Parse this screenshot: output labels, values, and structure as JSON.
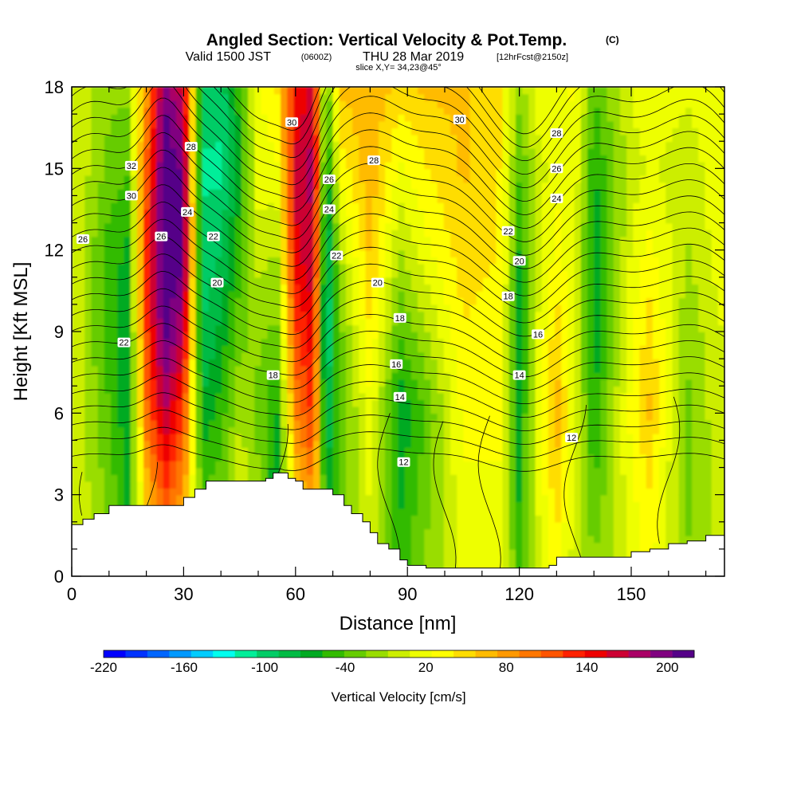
{
  "header": {
    "title": "Angled Section: Vertical Velocity & Pot.Temp.",
    "title_mark": "(C)",
    "valid_a": "Valid 1500 JST",
    "valid_utc": "(0600Z)",
    "valid_b": "THU 28 Mar 2019",
    "forecast": "[12hrFcst@2150z]",
    "slice": "slice X,Y= 34,23@45°"
  },
  "chart_data": {
    "type": "heatmap",
    "xlabel": "Distance [nm]",
    "ylabel": "Height [Kft MSL]",
    "xlim": [
      0,
      175
    ],
    "ylim": [
      0,
      18
    ],
    "x_ticks": [
      0,
      30,
      60,
      90,
      120,
      150
    ],
    "y_ticks": [
      0,
      3,
      6,
      9,
      12,
      15,
      18
    ],
    "colorbar": {
      "label": "Vertical Velocity [cm/s]",
      "range": [
        -220,
        220
      ],
      "tick_values": [
        -220,
        -160,
        -100,
        -40,
        20,
        80,
        140,
        200
      ],
      "tick_labels": [
        "-220",
        "-160",
        "-100",
        "-40",
        "20",
        "80",
        "140",
        "200"
      ],
      "colors": [
        "#0000ff",
        "#0033ff",
        "#0066ff",
        "#0099ff",
        "#00ccff",
        "#00ffee",
        "#00ee99",
        "#00cc66",
        "#00bb44",
        "#00aa22",
        "#33bb00",
        "#66cc00",
        "#99dd00",
        "#ccee00",
        "#eeff00",
        "#ffff00",
        "#ffdd00",
        "#ffbb00",
        "#ff9900",
        "#ff7700",
        "#ff5500",
        "#ff2200",
        "#ee0000",
        "#cc0033",
        "#aa0066",
        "#800080",
        "#550088"
      ]
    },
    "vv_grid": {
      "x": [
        0,
        10,
        15,
        20,
        25,
        30,
        35,
        40,
        45,
        50,
        55,
        60,
        65,
        68,
        72,
        80,
        88,
        95,
        105,
        115,
        120,
        125,
        130,
        135,
        140,
        150,
        155,
        165,
        175
      ],
      "columns": [
        [
          10,
          10,
          10,
          10,
          10,
          10,
          10
        ],
        [
          -20,
          -30,
          -40,
          -50,
          -50,
          -30,
          -20
        ],
        [
          -50,
          -60,
          -70,
          -70,
          -60,
          -40,
          -20
        ],
        [
          40,
          60,
          100,
          120,
          130,
          110,
          80
        ],
        [
          80,
          120,
          170,
          210,
          230,
          220,
          200
        ],
        [
          40,
          80,
          120,
          170,
          210,
          200,
          160
        ],
        [
          -20,
          -40,
          -70,
          -90,
          -100,
          -110,
          -90
        ],
        [
          -10,
          -30,
          -50,
          -70,
          -90,
          -110,
          -100
        ],
        [
          20,
          10,
          -10,
          -30,
          -50,
          -60,
          -50
        ],
        [
          -10,
          -20,
          -30,
          -20,
          0,
          20,
          20
        ],
        [
          -60,
          -80,
          -60,
          -30,
          -10,
          20,
          40
        ],
        [
          30,
          50,
          90,
          120,
          150,
          160,
          140
        ],
        [
          60,
          90,
          130,
          150,
          170,
          180,
          160
        ],
        [
          -50,
          -70,
          -100,
          -120,
          -110,
          -80,
          -50
        ],
        [
          -20,
          -30,
          -40,
          -30,
          -10,
          30,
          60
        ],
        [
          0,
          10,
          20,
          40,
          60,
          70,
          70
        ],
        [
          -50,
          -60,
          -70,
          -40,
          -10,
          20,
          50
        ],
        [
          -20,
          -30,
          -40,
          -10,
          20,
          40,
          60
        ],
        [
          10,
          20,
          30,
          40,
          50,
          60,
          60
        ],
        [
          10,
          20,
          30,
          30,
          40,
          40,
          40
        ],
        [
          -40,
          -60,
          -70,
          -70,
          -60,
          -40,
          -20
        ],
        [
          0,
          10,
          20,
          10,
          0,
          0,
          20
        ],
        [
          30,
          50,
          70,
          50,
          30,
          20,
          10
        ],
        [
          0,
          0,
          10,
          10,
          10,
          20,
          30
        ],
        [
          -20,
          -40,
          -60,
          -70,
          -70,
          -60,
          -40
        ],
        [
          10,
          20,
          30,
          20,
          10,
          0,
          10
        ],
        [
          30,
          40,
          60,
          50,
          30,
          10,
          20
        ],
        [
          -20,
          -30,
          -30,
          -20,
          -10,
          0,
          10
        ],
        [
          0,
          0,
          10,
          10,
          20,
          20,
          20
        ]
      ],
      "y": [
        0,
        3,
        6,
        9,
        12,
        15,
        18
      ]
    },
    "terrain": {
      "x": [
        0,
        3,
        6,
        10,
        15,
        20,
        25,
        30,
        33,
        36,
        40,
        45,
        50,
        52,
        54,
        56,
        58,
        60,
        62,
        65,
        68,
        70,
        73,
        75,
        78,
        80,
        82,
        85,
        88,
        90,
        95,
        100,
        105,
        110,
        115,
        120,
        125,
        128,
        130,
        133,
        136,
        140,
        145,
        150,
        155,
        160,
        165,
        170,
        175
      ],
      "height": [
        1.9,
        2.1,
        2.3,
        2.6,
        2.6,
        2.6,
        2.6,
        2.9,
        3.2,
        3.5,
        3.5,
        3.5,
        3.5,
        3.6,
        3.8,
        3.8,
        3.6,
        3.5,
        3.2,
        3.2,
        3.2,
        3.0,
        2.6,
        2.3,
        2.0,
        1.6,
        1.2,
        1.0,
        0.6,
        0.4,
        0.3,
        0.3,
        0.3,
        0.3,
        0.3,
        0.3,
        0.3,
        0.4,
        0.7,
        0.7,
        0.7,
        0.7,
        0.7,
        0.9,
        1.0,
        1.2,
        1.3,
        1.5,
        1.6
      ]
    },
    "theta_levels": [
      12,
      14,
      16,
      18,
      20,
      22,
      24,
      26,
      28,
      30,
      32
    ],
    "theta_labels": [
      {
        "text": "32",
        "x": 16,
        "y": 15.1
      },
      {
        "text": "30",
        "x": 16,
        "y": 14.0
      },
      {
        "text": "26",
        "x": 3,
        "y": 12.4
      },
      {
        "text": "22",
        "x": 14,
        "y": 8.6
      },
      {
        "text": "28",
        "x": 32,
        "y": 15.8
      },
      {
        "text": "24",
        "x": 31,
        "y": 13.4
      },
      {
        "text": "26",
        "x": 24,
        "y": 12.5
      },
      {
        "text": "22",
        "x": 38,
        "y": 12.5
      },
      {
        "text": "20",
        "x": 39,
        "y": 10.8
      },
      {
        "text": "30",
        "x": 59,
        "y": 16.7
      },
      {
        "text": "26",
        "x": 69,
        "y": 14.6
      },
      {
        "text": "24",
        "x": 69,
        "y": 13.5
      },
      {
        "text": "22",
        "x": 71,
        "y": 11.8
      },
      {
        "text": "18",
        "x": 54,
        "y": 7.4
      },
      {
        "text": "28",
        "x": 81,
        "y": 15.3
      },
      {
        "text": "20",
        "x": 82,
        "y": 10.8
      },
      {
        "text": "18",
        "x": 88,
        "y": 9.5
      },
      {
        "text": "16",
        "x": 87,
        "y": 7.8
      },
      {
        "text": "14",
        "x": 88,
        "y": 6.6
      },
      {
        "text": "12",
        "x": 89,
        "y": 4.2
      },
      {
        "text": "30",
        "x": 104,
        "y": 16.8
      },
      {
        "text": "28",
        "x": 130,
        "y": 16.3
      },
      {
        "text": "26",
        "x": 130,
        "y": 15.0
      },
      {
        "text": "24",
        "x": 130,
        "y": 13.9
      },
      {
        "text": "22",
        "x": 117,
        "y": 12.7
      },
      {
        "text": "20",
        "x": 120,
        "y": 11.6
      },
      {
        "text": "18",
        "x": 117,
        "y": 10.3
      },
      {
        "text": "16",
        "x": 125,
        "y": 8.9
      },
      {
        "text": "14",
        "x": 120,
        "y": 7.4
      },
      {
        "text": "12",
        "x": 134,
        "y": 5.1
      }
    ]
  }
}
